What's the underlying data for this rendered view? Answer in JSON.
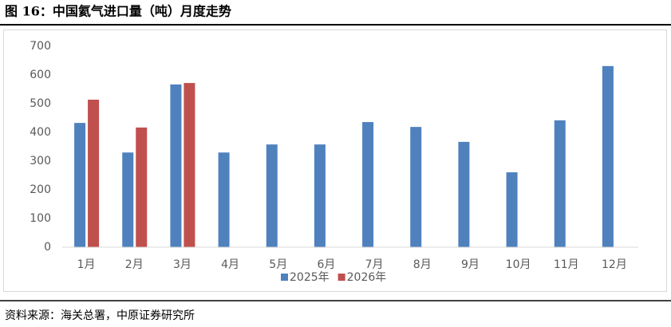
{
  "chart_data": {
    "type": "bar",
    "title": "图 16：中国氦气进口量（吨）月度走势",
    "source": "资料来源：海关总署，中原证券研究所",
    "categories": [
      "1月",
      "2月",
      "3月",
      "4月",
      "5月",
      "6月",
      "7月",
      "8月",
      "9月",
      "10月",
      "11月",
      "12月"
    ],
    "series": [
      {
        "name": "2025年",
        "color": "#4f81bd",
        "values": [
          433,
          330,
          567,
          330,
          358,
          358,
          436,
          419,
          367,
          261,
          442,
          631
        ]
      },
      {
        "name": "2026年",
        "color": "#c0504d",
        "values": [
          514,
          417,
          572,
          null,
          null,
          null,
          null,
          null,
          null,
          null,
          null,
          null
        ]
      }
    ],
    "ylim": [
      0,
      700
    ],
    "yticks": [
      0,
      100,
      200,
      300,
      400,
      500,
      600,
      700
    ],
    "grid": false,
    "legend": "bottom"
  }
}
